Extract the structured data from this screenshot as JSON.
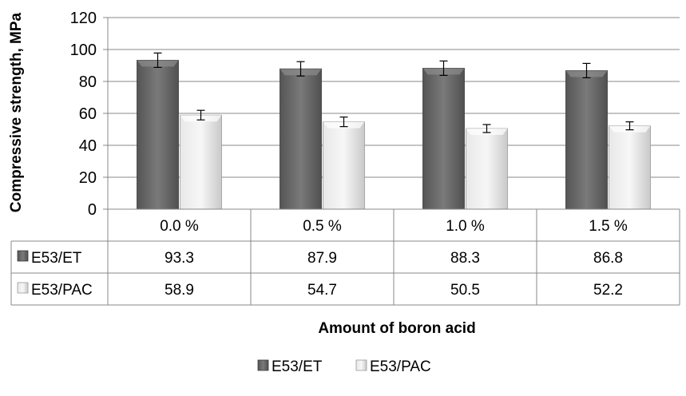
{
  "chart_data": {
    "type": "bar",
    "categories": [
      "0.0 %",
      "0.5 %",
      "1.0 %",
      "1.5 %"
    ],
    "series": [
      {
        "name": "E53/ET",
        "values": [
          93.3,
          87.9,
          88.3,
          86.8
        ],
        "error": [
          4.5,
          4.5,
          4.5,
          4.5
        ],
        "color": "#6b6b6b"
      },
      {
        "name": "E53/PAC",
        "values": [
          58.9,
          54.7,
          50.5,
          52.2
        ],
        "error": [
          3.0,
          3.0,
          2.5,
          2.5
        ],
        "color": "#d9d9d9"
      }
    ],
    "data_table": {
      "rows": [
        {
          "label": "E53/ET",
          "cells": [
            "93.3",
            "87.9",
            "88.3",
            "86.8"
          ]
        },
        {
          "label": "E53/PAC",
          "cells": [
            "58.9",
            "54.7",
            "50.5",
            "52.2"
          ]
        }
      ]
    },
    "yticks": [
      "0",
      "20",
      "40",
      "60",
      "80",
      "100",
      "120"
    ],
    "ylim": [
      0,
      120
    ],
    "xlabel": "Amount of boron acid",
    "ylabel": "Compressive strength, MPa",
    "grid": "horizontal",
    "legend": [
      "E53/ET",
      "E53/PAC"
    ],
    "legend_position": "bottom"
  }
}
